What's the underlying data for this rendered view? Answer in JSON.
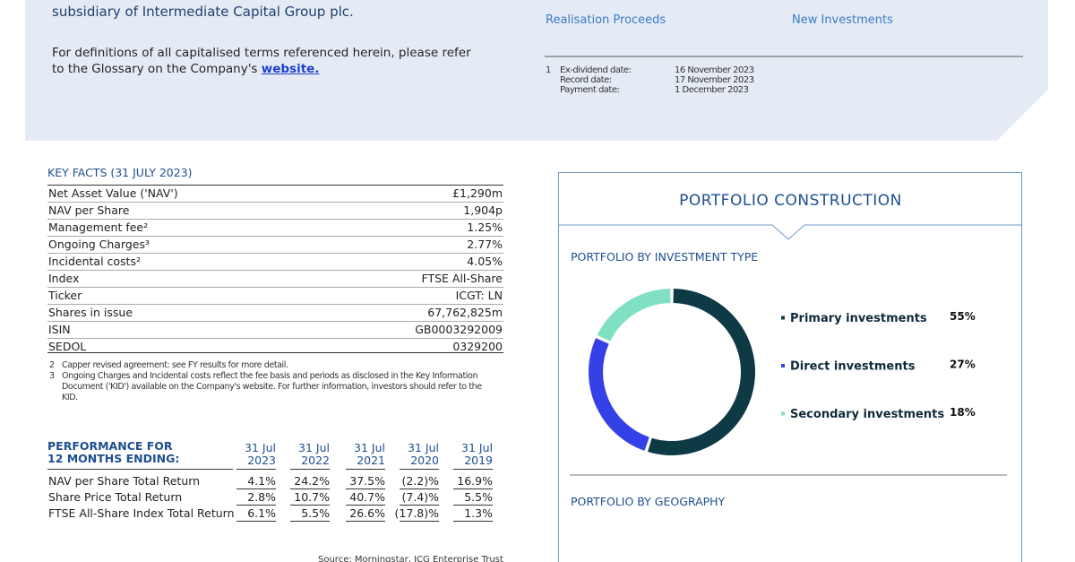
{
  "header": {
    "subtitle_line": "subsidiary of Intermediate Capital Group plc.",
    "glossary_text": "For definitions of all capitalised terms referenced herein, please refer to the Glossary on the Company's",
    "glossary_link": "website."
  },
  "highlights": [
    {
      "label": "Realisation Proceeds"
    },
    {
      "label": "New Investments"
    }
  ],
  "dividend_dates": {
    "marker": "1",
    "rows": [
      [
        "Ex-dividend date:",
        "16 November 2023"
      ],
      [
        "Record date:",
        "17 November 2023"
      ],
      [
        "Payment date:",
        "1 December 2023"
      ]
    ]
  },
  "key_facts": {
    "title": "KEY FACTS (31 JULY 2023)",
    "rows": [
      [
        "Net Asset Value ('NAV')",
        "£1,290m"
      ],
      [
        "NAV per Share",
        "1,904p"
      ],
      [
        "Management fee²",
        "1.25%"
      ],
      [
        "Ongoing Charges³",
        "2.77%"
      ],
      [
        "Incidental costs²",
        "4.05%"
      ],
      [
        "Index",
        "FTSE All-Share"
      ],
      [
        "Ticker",
        "ICGT: LN"
      ],
      [
        "Shares in issue",
        "67,762,825m"
      ],
      [
        "ISIN",
        "GB0003292009"
      ],
      [
        "SEDOL",
        "0329200"
      ]
    ],
    "notes": [
      [
        "2",
        "Capper revised agreement: see FY results for more detail."
      ],
      [
        "3",
        "Ongoing Charges and Incidental costs reflect the fee basis and periods as disclosed in the Key Information Document ('KID') available on the Company's website. For further information, investors should refer to the KID."
      ]
    ]
  },
  "performance": {
    "title": [
      "PERFORMANCE FOR",
      "12 MONTHS ENDING:"
    ],
    "columns": [
      [
        "31 Jul",
        "2023"
      ],
      [
        "31 Jul",
        "2022"
      ],
      [
        "31 Jul",
        "2021"
      ],
      [
        "31 Jul",
        "2020"
      ],
      [
        "31 Jul",
        "2019"
      ]
    ],
    "rows": [
      [
        "NAV per Share Total Return",
        "4.1%",
        "24.2%",
        "37.5%",
        "(2.2)%",
        "16.9%"
      ],
      [
        "Share Price Total Return",
        "2.8%",
        "10.7%",
        "40.7%",
        "(7.4)%",
        "5.5%"
      ],
      [
        "FTSE All-Share Index Total Return",
        "6.1%",
        "5.5%",
        "26.6%",
        "(17.8)%",
        "1.3%"
      ]
    ],
    "source": "Source: Morningstar, ICG Enterprise Trust"
  },
  "portfolio": {
    "title": "PORTFOLIO CONSTRUCTION",
    "by_type": {
      "title": "PORTFOLIO BY INVESTMENT TYPE",
      "categories": [
        "Primary investments",
        "Direct investments",
        "Secondary investments"
      ],
      "values": [
        55,
        27,
        18
      ],
      "value_labels": [
        "55%",
        "27%",
        "18%"
      ],
      "colors": [
        "#0e3a46",
        "#3341e6",
        "#7fe0c3"
      ]
    },
    "by_geography_title": "PORTFOLIO BY GEOGRAPHY"
  }
}
